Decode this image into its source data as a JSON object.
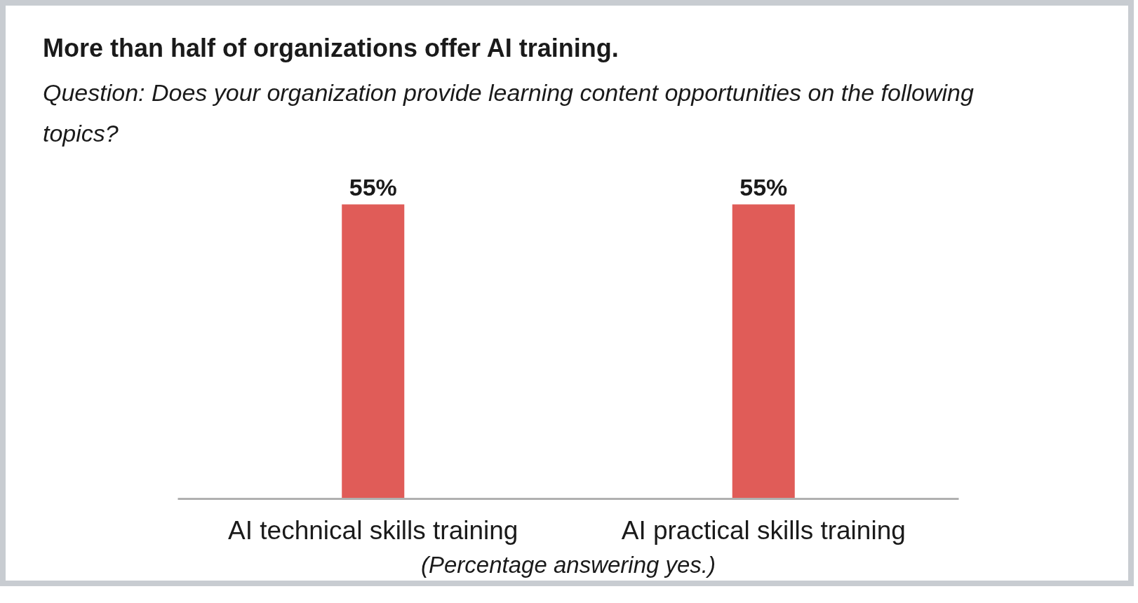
{
  "chart_data": {
    "type": "bar",
    "title": "More than half of organizations offer AI training.",
    "subtitle": "Question: Does your organization provide learning content opportunities on the following topics?",
    "categories": [
      "AI technical skills training",
      "AI practical skills training"
    ],
    "values": [
      55,
      55
    ],
    "value_labels": [
      "55%",
      "55%"
    ],
    "color": "#e05c58",
    "tick_labels": "x",
    "annotations": [
      "(Percentage answering yes.)"
    ]
  }
}
